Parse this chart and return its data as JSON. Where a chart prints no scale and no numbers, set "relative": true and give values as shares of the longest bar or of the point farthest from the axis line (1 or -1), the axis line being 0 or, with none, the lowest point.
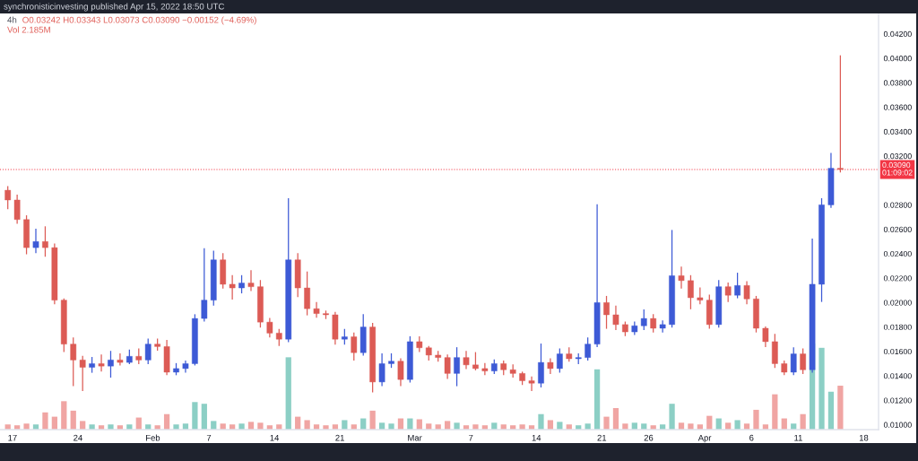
{
  "chart_data": [
    {
      "type": "candlestick",
      "title": "synchronisticinvesting published Apr 15, 2022 18:50 UTC",
      "subtitle": "4h",
      "annotations": [
        "O0.03242 H0.03343 L0.03073 C0.03090 −0.00152 (−4.69%)",
        "Vol 2.185M"
      ],
      "x": [
        "2022-01-16T12:00",
        "2022-01-17T12:00",
        "2022-01-18T12:00",
        "2022-01-19T12:00",
        "2022-01-20T12:00",
        "2022-01-21T12:00",
        "2022-01-22T12:00",
        "2022-01-23T12:00",
        "2022-01-24T12:00",
        "2022-01-25T12:00",
        "2022-01-26T12:00",
        "2022-01-27T12:00",
        "2022-01-28T12:00",
        "2022-01-29T12:00",
        "2022-01-30T12:00",
        "2022-01-31T12:00",
        "2022-02-01T12:00",
        "2022-02-02T12:00",
        "2022-02-03T12:00",
        "2022-02-04T12:00",
        "2022-02-05T12:00",
        "2022-02-06T12:00",
        "2022-02-07T12:00",
        "2022-02-08T12:00",
        "2022-02-09T12:00",
        "2022-02-10T12:00",
        "2022-02-11T12:00",
        "2022-02-12T12:00",
        "2022-02-13T12:00",
        "2022-02-14T12:00",
        "2022-02-15T12:00",
        "2022-02-16T12:00",
        "2022-02-17T12:00",
        "2022-02-18T12:00",
        "2022-02-19T12:00",
        "2022-02-20T12:00",
        "2022-02-21T12:00",
        "2022-02-22T12:00",
        "2022-02-23T12:00",
        "2022-02-24T12:00",
        "2022-02-25T12:00",
        "2022-02-26T12:00",
        "2022-02-27T12:00",
        "2022-02-28T12:00",
        "2022-03-01T12:00",
        "2022-03-02T12:00",
        "2022-03-03T12:00",
        "2022-03-04T12:00",
        "2022-03-05T12:00",
        "2022-03-06T12:00",
        "2022-03-07T12:00",
        "2022-03-08T12:00",
        "2022-03-09T12:00",
        "2022-03-10T12:00",
        "2022-03-11T12:00",
        "2022-03-12T12:00",
        "2022-03-13T12:00",
        "2022-03-14T12:00",
        "2022-03-15T12:00",
        "2022-03-16T12:00",
        "2022-03-17T12:00",
        "2022-03-18T12:00",
        "2022-03-19T12:00",
        "2022-03-20T12:00",
        "2022-03-21T12:00",
        "2022-03-22T12:00",
        "2022-03-23T12:00",
        "2022-03-24T12:00",
        "2022-03-25T12:00",
        "2022-03-26T12:00",
        "2022-03-27T12:00",
        "2022-03-28T12:00",
        "2022-03-29T12:00",
        "2022-03-30T12:00",
        "2022-03-31T12:00",
        "2022-04-01T12:00",
        "2022-04-02T12:00",
        "2022-04-03T12:00",
        "2022-04-04T12:00",
        "2022-04-05T12:00",
        "2022-04-06T12:00",
        "2022-04-07T12:00",
        "2022-04-08T12:00",
        "2022-04-09T12:00",
        "2022-04-10T12:00",
        "2022-04-11T12:00",
        "2022-04-12T12:00",
        "2022-04-13T12:00",
        "2022-04-14T12:00",
        "2022-04-15T12:00"
      ],
      "ohlc": [
        [
          0.0292,
          0.0295,
          0.0277,
          0.0284
        ],
        [
          0.0284,
          0.0288,
          0.0265,
          0.0268
        ],
        [
          0.0268,
          0.0271,
          0.024,
          0.0245
        ],
        [
          0.0245,
          0.026,
          0.0241,
          0.025
        ],
        [
          0.025,
          0.0262,
          0.0238,
          0.0245
        ],
        [
          0.0245,
          0.0248,
          0.0199,
          0.0202
        ],
        [
          0.0202,
          0.0203,
          0.016,
          0.0166
        ],
        [
          0.0166,
          0.0171,
          0.0132,
          0.0153
        ],
        [
          0.0153,
          0.0156,
          0.0128,
          0.0147
        ],
        [
          0.0147,
          0.0155,
          0.0143,
          0.015
        ],
        [
          0.015,
          0.0157,
          0.0144,
          0.0148
        ],
        [
          0.0148,
          0.016,
          0.0139,
          0.0153
        ],
        [
          0.0153,
          0.0158,
          0.0149,
          0.0151
        ],
        [
          0.0151,
          0.0161,
          0.015,
          0.0156
        ],
        [
          0.0156,
          0.0162,
          0.015,
          0.0153
        ],
        [
          0.0153,
          0.017,
          0.015,
          0.0166
        ],
        [
          0.0166,
          0.017,
          0.0161,
          0.0164
        ],
        [
          0.0164,
          0.0169,
          0.0141,
          0.0143
        ],
        [
          0.0143,
          0.015,
          0.0141,
          0.0146
        ],
        [
          0.0146,
          0.0152,
          0.0143,
          0.015
        ],
        [
          0.015,
          0.019,
          0.0149,
          0.0187
        ],
        [
          0.0187,
          0.0244,
          0.0185,
          0.0202
        ],
        [
          0.0202,
          0.0242,
          0.0198,
          0.0235
        ],
        [
          0.0235,
          0.024,
          0.0212,
          0.0215
        ],
        [
          0.0215,
          0.0222,
          0.0203,
          0.0212
        ],
        [
          0.0212,
          0.0222,
          0.0208,
          0.0216
        ],
        [
          0.0216,
          0.0226,
          0.021,
          0.0213
        ],
        [
          0.0213,
          0.0218,
          0.018,
          0.0184
        ],
        [
          0.0184,
          0.0187,
          0.0172,
          0.0175
        ],
        [
          0.0175,
          0.0178,
          0.0165,
          0.017
        ],
        [
          0.017,
          0.0285,
          0.0168,
          0.0235
        ],
        [
          0.0235,
          0.024,
          0.0205,
          0.0212
        ],
        [
          0.0212,
          0.0225,
          0.019,
          0.0195
        ],
        [
          0.0195,
          0.02,
          0.0188,
          0.0191
        ],
        [
          0.0191,
          0.0193,
          0.0187,
          0.019
        ],
        [
          0.019,
          0.0192,
          0.0166,
          0.017
        ],
        [
          0.017,
          0.0178,
          0.0166,
          0.0172
        ],
        [
          0.0172,
          0.0175,
          0.0153,
          0.0159
        ],
        [
          0.0159,
          0.019,
          0.0157,
          0.018
        ],
        [
          0.018,
          0.0183,
          0.0127,
          0.0135
        ],
        [
          0.0135,
          0.0158,
          0.0132,
          0.015
        ],
        [
          0.015,
          0.0158,
          0.0147,
          0.0152
        ],
        [
          0.0152,
          0.0154,
          0.0132,
          0.0137
        ],
        [
          0.0137,
          0.0172,
          0.0135,
          0.0168
        ],
        [
          0.0168,
          0.0172,
          0.016,
          0.0163
        ],
        [
          0.0163,
          0.0164,
          0.0153,
          0.0157
        ],
        [
          0.0157,
          0.016,
          0.0152,
          0.0155
        ],
        [
          0.0155,
          0.0157,
          0.0138,
          0.0142
        ],
        [
          0.0142,
          0.0163,
          0.0132,
          0.0155
        ],
        [
          0.0155,
          0.016,
          0.0146,
          0.0149
        ],
        [
          0.0149,
          0.0159,
          0.0145,
          0.0146
        ],
        [
          0.0146,
          0.015,
          0.0141,
          0.0144
        ],
        [
          0.0144,
          0.0153,
          0.0142,
          0.015
        ],
        [
          0.015,
          0.0152,
          0.0141,
          0.0145
        ],
        [
          0.0145,
          0.0149,
          0.0139,
          0.0142
        ],
        [
          0.0142,
          0.0143,
          0.0133,
          0.0136
        ],
        [
          0.0136,
          0.0139,
          0.0128,
          0.0134
        ],
        [
          0.0134,
          0.0166,
          0.0131,
          0.0151
        ],
        [
          0.0151,
          0.0154,
          0.0142,
          0.0146
        ],
        [
          0.0146,
          0.0162,
          0.0143,
          0.0158
        ],
        [
          0.0158,
          0.0163,
          0.0152,
          0.0154
        ],
        [
          0.0154,
          0.0158,
          0.015,
          0.0155
        ],
        [
          0.0155,
          0.0171,
          0.0153,
          0.0166
        ],
        [
          0.0166,
          0.028,
          0.0164,
          0.02
        ],
        [
          0.02,
          0.0205,
          0.0179,
          0.019
        ],
        [
          0.019,
          0.0197,
          0.0178,
          0.0182
        ],
        [
          0.0182,
          0.0184,
          0.0173,
          0.0176
        ],
        [
          0.0176,
          0.0184,
          0.0174,
          0.0181
        ],
        [
          0.0181,
          0.0194,
          0.0178,
          0.0187
        ],
        [
          0.0187,
          0.019,
          0.0176,
          0.0179
        ],
        [
          0.0179,
          0.0185,
          0.0176,
          0.0182
        ],
        [
          0.0182,
          0.0259,
          0.018,
          0.0222
        ],
        [
          0.0222,
          0.0229,
          0.0212,
          0.0218
        ],
        [
          0.0218,
          0.0222,
          0.0195,
          0.0204
        ],
        [
          0.0204,
          0.0212,
          0.0199,
          0.0202
        ],
        [
          0.0202,
          0.0206,
          0.0179,
          0.0182
        ],
        [
          0.0182,
          0.0218,
          0.018,
          0.0213
        ],
        [
          0.0213,
          0.0216,
          0.0201,
          0.0206
        ],
        [
          0.0206,
          0.0224,
          0.0204,
          0.0214
        ],
        [
          0.0214,
          0.0217,
          0.0199,
          0.0203
        ],
        [
          0.0203,
          0.0205,
          0.0176,
          0.0179
        ],
        [
          0.0179,
          0.018,
          0.0164,
          0.0168
        ],
        [
          0.0168,
          0.0174,
          0.0147,
          0.015
        ],
        [
          0.015,
          0.0152,
          0.0141,
          0.0143
        ],
        [
          0.0143,
          0.0163,
          0.0141,
          0.0158
        ],
        [
          0.0158,
          0.0162,
          0.0142,
          0.0145
        ],
        [
          0.0145,
          0.0252,
          0.0143,
          0.0215
        ],
        [
          0.0215,
          0.0285,
          0.0201,
          0.028
        ],
        [
          0.028,
          0.0322,
          0.0278,
          0.031
        ],
        [
          0.031,
          0.0402,
          0.0307,
          0.0309
        ]
      ],
      "colors": [
        "#dc5b55",
        "#dc5b55",
        "#dc5b55",
        "#3d5ad6",
        "#dc5b55",
        "#dc5b55",
        "#dc5b55",
        "#dc5b55",
        "#dc5b55",
        "#3d5ad6",
        "#dc5b55",
        "#3d5ad6",
        "#dc5b55",
        "#3d5ad6",
        "#dc5b55",
        "#3d5ad6",
        "#dc5b55",
        "#dc5b55",
        "#3d5ad6",
        "#3d5ad6",
        "#3d5ad6",
        "#3d5ad6",
        "#3d5ad6",
        "#dc5b55",
        "#dc5b55",
        "#3d5ad6",
        "#dc5b55",
        "#dc5b55",
        "#dc5b55",
        "#dc5b55",
        "#3d5ad6",
        "#dc5b55",
        "#dc5b55",
        "#dc5b55",
        "#dc5b55",
        "#dc5b55",
        "#3d5ad6",
        "#dc5b55",
        "#3d5ad6",
        "#dc5b55",
        "#3d5ad6",
        "#3d5ad6",
        "#dc5b55",
        "#3d5ad6",
        "#dc5b55",
        "#dc5b55",
        "#dc5b55",
        "#dc5b55",
        "#3d5ad6",
        "#dc5b55",
        "#dc5b55",
        "#dc5b55",
        "#3d5ad6",
        "#dc5b55",
        "#dc5b55",
        "#dc5b55",
        "#dc5b55",
        "#3d5ad6",
        "#dc5b55",
        "#3d5ad6",
        "#dc5b55",
        "#3d5ad6",
        "#3d5ad6",
        "#3d5ad6",
        "#dc5b55",
        "#dc5b55",
        "#dc5b55",
        "#3d5ad6",
        "#3d5ad6",
        "#dc5b55",
        "#3d5ad6",
        "#3d5ad6",
        "#dc5b55",
        "#dc5b55",
        "#dc5b55",
        "#dc5b55",
        "#3d5ad6",
        "#dc5b55",
        "#3d5ad6",
        "#dc5b55",
        "#dc5b55",
        "#dc5b55",
        "#dc5b55",
        "#dc5b55",
        "#3d5ad6",
        "#dc5b55",
        "#3d5ad6",
        "#3d5ad6",
        "#3d5ad6",
        "#dc5b55"
      ],
      "xlim": [
        "2022-01-15T16:00",
        "2022-04-19T14:00"
      ],
      "xticks": [
        {
          "value": "2022-01-17",
          "label": "17"
        },
        {
          "value": "2022-01-24",
          "label": "24"
        },
        {
          "value": "2022-02-01",
          "label": "Feb"
        },
        {
          "value": "2022-02-07",
          "label": "7"
        },
        {
          "value": "2022-02-14",
          "label": "14"
        },
        {
          "value": "2022-02-21",
          "label": "21"
        },
        {
          "value": "2022-03-01",
          "label": "Mar"
        },
        {
          "value": "2022-03-07",
          "label": "7"
        },
        {
          "value": "2022-03-14",
          "label": "14"
        },
        {
          "value": "2022-03-21",
          "label": "21"
        },
        {
          "value": "2022-03-26",
          "label": "26"
        },
        {
          "value": "2022-04-01",
          "label": "Apr"
        },
        {
          "value": "2022-04-06",
          "label": "6"
        },
        {
          "value": "2022-04-11",
          "label": "11"
        },
        {
          "value": "2022-04-18",
          "label": "18"
        }
      ],
      "ylim": [
        0.0096,
        0.0436
      ],
      "yticks": [
        {
          "value": 0.01,
          "label": "0.01000"
        },
        {
          "value": 0.012,
          "label": "0.01200"
        },
        {
          "value": 0.014,
          "label": "0.01400"
        },
        {
          "value": 0.016,
          "label": "0.01600"
        },
        {
          "value": 0.018,
          "label": "0.01800"
        },
        {
          "value": 0.02,
          "label": "0.02000"
        },
        {
          "value": 0.022,
          "label": "0.02200"
        },
        {
          "value": 0.024,
          "label": "0.02400"
        },
        {
          "value": 0.026,
          "label": "0.02600"
        },
        {
          "value": 0.028,
          "label": "0.02800"
        },
        {
          "value": 0.032,
          "label": "0.03200"
        },
        {
          "value": 0.034,
          "label": "0.03400"
        },
        {
          "value": 0.036,
          "label": "0.03600"
        },
        {
          "value": 0.038,
          "label": "0.03800"
        },
        {
          "value": 0.04,
          "label": "0.04000"
        },
        {
          "value": 0.042,
          "label": "0.04200"
        }
      ],
      "ref_lines": [
        {
          "axis": "y",
          "value": 0.0309,
          "label": "0.03090\n01:09:02",
          "color": "#f23645",
          "line_style": "dotted"
        }
      ]
    },
    {
      "type": "bar",
      "relative": true,
      "x": [
        "2022-01-16T12:00",
        "2022-01-17T12:00",
        "2022-01-18T12:00",
        "2022-01-19T12:00",
        "2022-01-20T12:00",
        "2022-01-21T12:00",
        "2022-01-22T12:00",
        "2022-01-23T12:00",
        "2022-01-24T12:00",
        "2022-01-25T12:00",
        "2022-01-26T12:00",
        "2022-01-27T12:00",
        "2022-01-28T12:00",
        "2022-01-29T12:00",
        "2022-01-30T12:00",
        "2022-01-31T12:00",
        "2022-02-01T12:00",
        "2022-02-02T12:00",
        "2022-02-03T12:00",
        "2022-02-04T12:00",
        "2022-02-05T12:00",
        "2022-02-06T12:00",
        "2022-02-07T12:00",
        "2022-02-08T12:00",
        "2022-02-09T12:00",
        "2022-02-10T12:00",
        "2022-02-11T12:00",
        "2022-02-12T12:00",
        "2022-02-13T12:00",
        "2022-02-14T12:00",
        "2022-02-15T12:00",
        "2022-02-16T12:00",
        "2022-02-17T12:00",
        "2022-02-18T12:00",
        "2022-02-19T12:00",
        "2022-02-20T12:00",
        "2022-02-21T12:00",
        "2022-02-22T12:00",
        "2022-02-23T12:00",
        "2022-02-24T12:00",
        "2022-02-25T12:00",
        "2022-02-26T12:00",
        "2022-02-27T12:00",
        "2022-02-28T12:00",
        "2022-03-01T12:00",
        "2022-03-02T12:00",
        "2022-03-03T12:00",
        "2022-03-04T12:00",
        "2022-03-05T12:00",
        "2022-03-06T12:00",
        "2022-03-07T12:00",
        "2022-03-08T12:00",
        "2022-03-09T12:00",
        "2022-03-10T12:00",
        "2022-03-11T12:00",
        "2022-03-12T12:00",
        "2022-03-13T12:00",
        "2022-03-14T12:00",
        "2022-03-15T12:00",
        "2022-03-16T12:00",
        "2022-03-17T12:00",
        "2022-03-18T12:00",
        "2022-03-19T12:00",
        "2022-03-20T12:00",
        "2022-03-21T12:00",
        "2022-03-22T12:00",
        "2022-03-23T12:00",
        "2022-03-24T12:00",
        "2022-03-25T12:00",
        "2022-03-26T12:00",
        "2022-03-27T12:00",
        "2022-03-28T12:00",
        "2022-03-29T12:00",
        "2022-03-30T12:00",
        "2022-03-31T12:00",
        "2022-04-01T12:00",
        "2022-04-02T12:00",
        "2022-04-03T12:00",
        "2022-04-04T12:00",
        "2022-04-05T12:00",
        "2022-04-06T12:00",
        "2022-04-07T12:00",
        "2022-04-08T12:00",
        "2022-04-09T12:00",
        "2022-04-10T12:00",
        "2022-04-11T12:00",
        "2022-04-12T12:00",
        "2022-04-13T12:00",
        "2022-04-14T12:00",
        "2022-04-15T12:00"
      ],
      "values": [
        0.06,
        0.05,
        0.07,
        0.06,
        0.2,
        0.15,
        0.33,
        0.22,
        0.1,
        0.06,
        0.05,
        0.06,
        0.05,
        0.06,
        0.14,
        0.06,
        0.05,
        0.18,
        0.06,
        0.07,
        0.32,
        0.3,
        0.1,
        0.07,
        0.06,
        0.07,
        0.09,
        0.08,
        0.05,
        0.06,
        0.84,
        0.15,
        0.11,
        0.06,
        0.05,
        0.06,
        0.11,
        0.06,
        0.13,
        0.22,
        0.08,
        0.07,
        0.13,
        0.13,
        0.12,
        0.07,
        0.06,
        0.1,
        0.08,
        0.05,
        0.06,
        0.05,
        0.08,
        0.06,
        0.05,
        0.06,
        0.05,
        0.18,
        0.11,
        0.09,
        0.06,
        0.05,
        0.07,
        0.7,
        0.15,
        0.25,
        0.07,
        0.08,
        0.07,
        0.05,
        0.06,
        0.3,
        0.08,
        0.07,
        0.06,
        0.16,
        0.13,
        0.08,
        0.11,
        0.07,
        0.23,
        0.06,
        0.41,
        0.13,
        0.07,
        0.18,
        1.0,
        0.95,
        0.44,
        0.51
      ],
      "colors": [
        "#f0a5a3",
        "#f0a5a3",
        "#f0a5a3",
        "#8ccfc5",
        "#f0a5a3",
        "#f0a5a3",
        "#f0a5a3",
        "#f0a5a3",
        "#f0a5a3",
        "#8ccfc5",
        "#f0a5a3",
        "#8ccfc5",
        "#f0a5a3",
        "#8ccfc5",
        "#f0a5a3",
        "#8ccfc5",
        "#f0a5a3",
        "#f0a5a3",
        "#8ccfc5",
        "#8ccfc5",
        "#8ccfc5",
        "#8ccfc5",
        "#8ccfc5",
        "#f0a5a3",
        "#f0a5a3",
        "#8ccfc5",
        "#f0a5a3",
        "#f0a5a3",
        "#f0a5a3",
        "#f0a5a3",
        "#8ccfc5",
        "#f0a5a3",
        "#f0a5a3",
        "#f0a5a3",
        "#f0a5a3",
        "#f0a5a3",
        "#8ccfc5",
        "#f0a5a3",
        "#8ccfc5",
        "#f0a5a3",
        "#8ccfc5",
        "#8ccfc5",
        "#f0a5a3",
        "#8ccfc5",
        "#f0a5a3",
        "#f0a5a3",
        "#f0a5a3",
        "#f0a5a3",
        "#8ccfc5",
        "#f0a5a3",
        "#f0a5a3",
        "#f0a5a3",
        "#8ccfc5",
        "#f0a5a3",
        "#f0a5a3",
        "#f0a5a3",
        "#f0a5a3",
        "#8ccfc5",
        "#f0a5a3",
        "#8ccfc5",
        "#f0a5a3",
        "#8ccfc5",
        "#8ccfc5",
        "#8ccfc5",
        "#f0a5a3",
        "#f0a5a3",
        "#f0a5a3",
        "#8ccfc5",
        "#8ccfc5",
        "#f0a5a3",
        "#8ccfc5",
        "#8ccfc5",
        "#f0a5a3",
        "#f0a5a3",
        "#f0a5a3",
        "#f0a5a3",
        "#8ccfc5",
        "#f0a5a3",
        "#8ccfc5",
        "#f0a5a3",
        "#f0a5a3",
        "#f0a5a3",
        "#f0a5a3",
        "#f0a5a3",
        "#8ccfc5",
        "#f0a5a3",
        "#8ccfc5",
        "#8ccfc5",
        "#8ccfc5",
        "#f0a5a3"
      ],
      "xlim": [
        "2022-01-15T16:00",
        "2022-04-19T14:00"
      ]
    }
  ]
}
